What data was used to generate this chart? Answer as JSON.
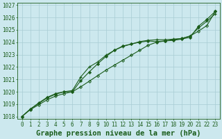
{
  "title": "Graphe pression niveau de la mer (hPa)",
  "xlim": [
    -0.5,
    23.5
  ],
  "ylim": [
    1017.8,
    1027.2
  ],
  "yticks": [
    1018,
    1019,
    1020,
    1021,
    1022,
    1023,
    1024,
    1025,
    1026,
    1027
  ],
  "xticks": [
    0,
    1,
    2,
    3,
    4,
    5,
    6,
    7,
    8,
    9,
    10,
    11,
    12,
    13,
    14,
    15,
    16,
    17,
    18,
    19,
    20,
    21,
    22,
    23
  ],
  "background_color": "#cce8ee",
  "grid_color": "#a8ccd4",
  "line_color": "#1a5c1a",
  "line1_diamond": [
    1018.0,
    1018.6,
    1019.1,
    1019.55,
    1019.85,
    1020.0,
    1020.0,
    1020.9,
    1021.6,
    1022.25,
    1022.85,
    1023.35,
    1023.7,
    1023.85,
    1024.0,
    1024.1,
    1024.05,
    1024.1,
    1024.15,
    1024.25,
    1024.4,
    1025.3,
    1025.85,
    1026.5
  ],
  "line2_cross": [
    1018.0,
    1018.6,
    1019.05,
    1019.5,
    1019.8,
    1020.0,
    1020.1,
    1021.2,
    1022.0,
    1022.4,
    1022.95,
    1023.35,
    1023.65,
    1023.85,
    1024.05,
    1024.15,
    1024.2,
    1024.2,
    1024.25,
    1024.3,
    1024.5,
    1025.15,
    1025.7,
    1026.3
  ],
  "line3_straight": [
    1018.0,
    1018.55,
    1018.95,
    1019.35,
    1019.65,
    1019.85,
    1020.0,
    1020.4,
    1020.85,
    1021.3,
    1021.75,
    1022.15,
    1022.55,
    1022.95,
    1023.35,
    1023.75,
    1024.0,
    1024.1,
    1024.2,
    1024.3,
    1024.5,
    1024.9,
    1025.35,
    1026.5
  ],
  "title_fontsize": 7.5,
  "tick_fontsize": 5.5,
  "fig_bg": "#cce8ee"
}
